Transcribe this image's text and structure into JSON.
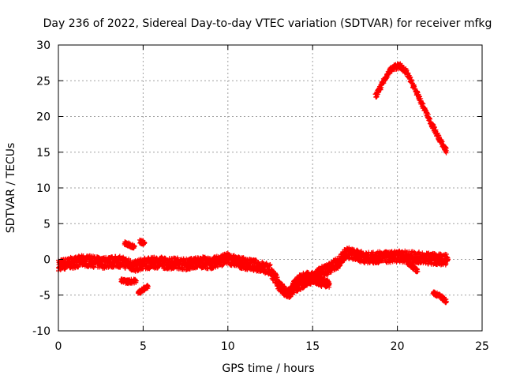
{
  "chart_data": {
    "type": "scatter",
    "title": "Day 236 of 2022, Sidereal Day-to-day VTEC variation (SDTVAR) for receiver mfkg",
    "xlabel": "GPS time / hours",
    "ylabel": "SDTVAR / TECUs",
    "xlim": [
      0,
      25
    ],
    "ylim": [
      -10,
      30
    ],
    "xticks": [
      0,
      5,
      10,
      15,
      20,
      25
    ],
    "yticks": [
      -10,
      -5,
      0,
      5,
      10,
      15,
      20,
      25,
      30
    ],
    "grid": true,
    "marker": "+",
    "color": "#ff0000",
    "series": [
      {
        "name": "main-band",
        "spread": 0.8,
        "x": [
          0,
          0.5,
          1,
          1.5,
          2,
          2.5,
          3,
          3.5,
          4,
          4.5,
          5,
          5.5,
          6,
          6.5,
          7,
          7.5,
          8,
          8.5,
          9,
          9.5,
          10,
          10.5,
          11,
          11.5,
          12,
          12.5,
          13,
          13.3,
          13.6,
          14,
          14.5,
          15,
          15.5,
          16,
          16.5,
          17,
          17.5,
          18,
          18.5,
          19,
          19.5,
          20,
          20.5,
          21,
          21.5,
          22,
          22.5,
          23
        ],
        "y": [
          -0.8,
          -0.6,
          -0.4,
          -0.2,
          -0.3,
          -0.5,
          -0.4,
          -0.3,
          -0.5,
          -1.0,
          -0.6,
          -0.5,
          -0.4,
          -0.6,
          -0.5,
          -0.7,
          -0.5,
          -0.4,
          -0.6,
          -0.2,
          0.1,
          -0.3,
          -0.6,
          -0.8,
          -1.0,
          -1.5,
          -3.5,
          -4.5,
          -4.8,
          -3.8,
          -3.2,
          -2.5,
          -1.8,
          -1.2,
          -0.5,
          1.0,
          0.6,
          0.3,
          0.2,
          0.3,
          0.3,
          0.4,
          0.4,
          0.3,
          0.2,
          0.1,
          0.0,
          0.0
        ]
      },
      {
        "name": "secondary-dip",
        "spread": 0.6,
        "x": [
          13.8,
          14.2,
          14.6,
          15.0,
          15.5,
          16.0
        ],
        "y": [
          -3.8,
          -2.8,
          -2.3,
          -2.6,
          -3.2,
          -3.4
        ]
      },
      {
        "name": "early-segment-a",
        "spread": 0.3,
        "x": [
          3.9,
          4.2,
          4.5
        ],
        "y": [
          2.2,
          2.0,
          1.8
        ]
      },
      {
        "name": "early-segment-b",
        "spread": 0.3,
        "x": [
          4.8,
          5.1
        ],
        "y": [
          2.5,
          2.3
        ]
      },
      {
        "name": "early-segment-c",
        "spread": 0.3,
        "x": [
          3.7,
          4.1,
          4.6
        ],
        "y": [
          -3.0,
          -3.1,
          -3.0
        ]
      },
      {
        "name": "early-segment-d",
        "spread": 0.3,
        "x": [
          4.7,
          5.0,
          5.3
        ],
        "y": [
          -4.7,
          -4.2,
          -3.8
        ]
      },
      {
        "name": "afternoon-drop",
        "spread": 0.3,
        "x": [
          20.6,
          20.9,
          21.2
        ],
        "y": [
          -0.4,
          -1.0,
          -1.7
        ]
      },
      {
        "name": "late-arc",
        "spread": 0.4,
        "x": [
          18.7,
          19.0,
          19.3,
          19.6,
          19.9,
          20.2,
          20.5,
          20.8,
          21.2,
          21.6,
          22.0,
          22.4,
          22.8,
          22.9
        ],
        "y": [
          22.8,
          24.0,
          25.5,
          26.5,
          27.0,
          27.0,
          26.3,
          25.0,
          23.0,
          21.0,
          19.0,
          17.2,
          15.5,
          15.2
        ]
      },
      {
        "name": "late-low",
        "spread": 0.3,
        "x": [
          22.1,
          22.4,
          22.7,
          22.9
        ],
        "y": [
          -4.7,
          -5.0,
          -5.5,
          -5.9
        ]
      }
    ]
  }
}
